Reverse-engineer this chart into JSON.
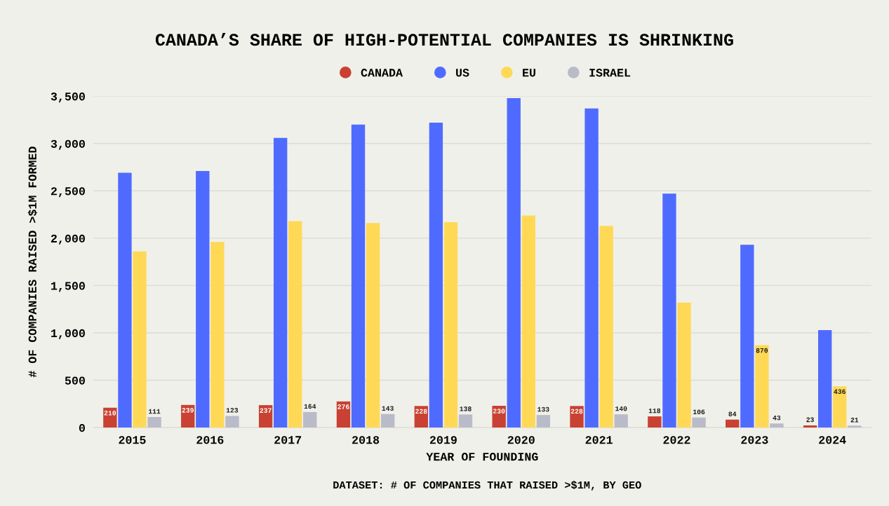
{
  "chart_data": {
    "type": "bar",
    "title": "CANADA’S SHARE OF HIGH-POTENTIAL COMPANIES IS SHRINKING",
    "xlabel": "YEAR OF FOUNDING",
    "ylabel": "# OF COMPANIES RAISED >$1M FORMED",
    "categories": [
      "2015",
      "2016",
      "2017",
      "2018",
      "2019",
      "2020",
      "2021",
      "2022",
      "2023",
      "2024"
    ],
    "series": [
      {
        "name": "CANADA",
        "color": "#c94132",
        "values": [
          210,
          239,
          237,
          276,
          228,
          230,
          228,
          118,
          84,
          23
        ],
        "value_labels": [
          "210",
          "239",
          "237",
          "276",
          "228",
          "230",
          "228",
          "118",
          "84",
          "23"
        ]
      },
      {
        "name": "US",
        "color": "#4f6bff",
        "values": [
          2690,
          2710,
          3060,
          3200,
          3220,
          3480,
          3370,
          2470,
          1930,
          1030
        ]
      },
      {
        "name": "EU",
        "color": "#ffd956",
        "values": [
          1860,
          1960,
          2180,
          2160,
          2170,
          2240,
          2130,
          1320,
          870,
          436
        ],
        "value_labels": [
          null,
          null,
          null,
          null,
          null,
          null,
          null,
          null,
          "870",
          "436"
        ]
      },
      {
        "name": "ISRAEL",
        "color": "#b9bcc8",
        "values": [
          111,
          123,
          164,
          143,
          138,
          133,
          140,
          106,
          43,
          21
        ],
        "value_labels": [
          "111",
          "123",
          "164",
          "143",
          "138",
          "133",
          "140",
          "106",
          "43",
          "21"
        ]
      }
    ],
    "ylim": [
      0,
      3500
    ],
    "yticks": [
      {
        "value": 0,
        "label": "0"
      },
      {
        "value": 500,
        "label": "500"
      },
      {
        "value": 1000,
        "label": "1,000"
      },
      {
        "value": 1500,
        "label": "1,500"
      },
      {
        "value": 2000,
        "label": "2,000"
      },
      {
        "value": 2500,
        "label": "2,500"
      },
      {
        "value": 3000,
        "label": "3,000"
      },
      {
        "value": 3500,
        "label": "3,500"
      }
    ],
    "grid": "y",
    "legend": "top",
    "annotations": [
      "DATASET: # OF COMPANIES THAT RAISED >$1M, BY GEO"
    ]
  }
}
